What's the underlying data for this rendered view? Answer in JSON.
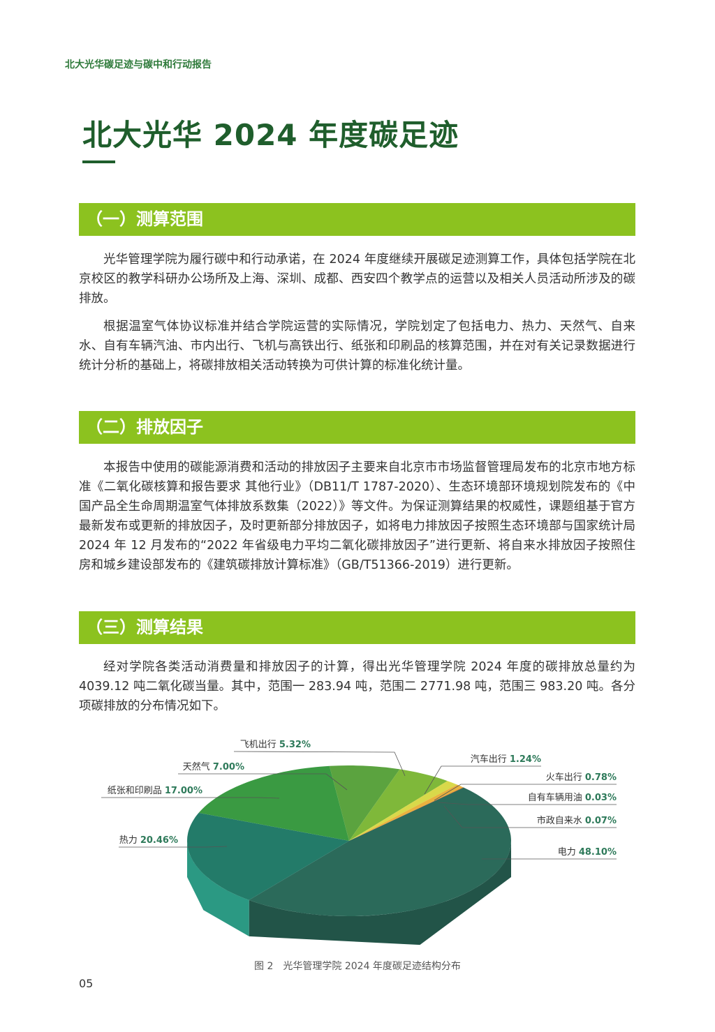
{
  "header": "北大光华碳足迹与碳中和行动报告",
  "title": "北大光华 2024 年度碳足迹",
  "sections": [
    {
      "heading": "（一）测算范围",
      "paragraphs": [
        "光华管理学院为履行碳中和行动承诺，在 2024 年度继续开展碳足迹测算工作，具体包括学院在北京校区的教学科研办公场所及上海、深圳、成都、西安四个教学点的运营以及相关人员活动所涉及的碳排放。",
        "根据温室气体协议标准并结合学院运营的实际情况，学院划定了包括电力、热力、天然气、自来水、自有车辆汽油、市内出行、飞机与高铁出行、纸张和印刷品的核算范围，并在对有关记录数据进行统计分析的基础上，将碳排放相关活动转换为可供计算的标准化统计量。"
      ]
    },
    {
      "heading": "（二）排放因子",
      "paragraphs": [
        "本报告中使用的碳能源消费和活动的排放因子主要来自北京市市场监督管理局发布的北京市地方标准《二氧化碳核算和报告要求 其他行业》（DB11/T 1787-2020）、生态环境部环境规划院发布的《中国产品全生命周期温室气体排放系数集（2022）》等文件。为保证测算结果的权威性，课题组基于官方最新发布或更新的排放因子，及时更新部分排放因子，如将电力排放因子按照生态环境部与国家统计局 2024 年 12 月发布的“2022 年省级电力平均二氧化碳排放因子”进行更新、将自来水排放因子按照住房和城乡建设部发布的《建筑碳排放计算标准》（GB/T51366-2019）进行更新。"
      ]
    },
    {
      "heading": "（三）测算结果",
      "paragraphs": [
        "经对学院各类活动消费量和排放因子的计算，得出光华管理学院 2024 年度的碳排放总量约为 4039.12 吨二氧化碳当量。其中，范围一 283.94 吨，范围二 2771.98 吨，范围三 983.20 吨。各分项碳排放的分布情况如下。"
      ]
    }
  ],
  "chart_data": {
    "type": "pie",
    "style": "3d",
    "unit": "%",
    "slices": [
      {
        "label": "电力",
        "value": 48.1,
        "display": "48.10%",
        "color": "#2b6a5a"
      },
      {
        "label": "热力",
        "value": 20.46,
        "display": "20.46%",
        "color": "#237b69"
      },
      {
        "label": "纸张和印刷品",
        "value": 17.0,
        "display": "17.00%",
        "color": "#3a9a42"
      },
      {
        "label": "天然气",
        "value": 7.0,
        "display": "7.00%",
        "color": "#5ba33f"
      },
      {
        "label": "飞机出行",
        "value": 5.32,
        "display": "5.32%",
        "color": "#7fb83a"
      },
      {
        "label": "汽车出行",
        "value": 1.24,
        "display": "1.24%",
        "color": "#d9d94a"
      },
      {
        "label": "火车出行",
        "value": 0.78,
        "display": "0.78%",
        "color": "#e9b23e"
      },
      {
        "label": "自有车辆用油",
        "value": 0.03,
        "display": "0.03%",
        "color": "#e07a20"
      },
      {
        "label": "市政自来水",
        "value": 0.07,
        "display": "0.07%",
        "color": "#cf5f12"
      }
    ],
    "label_color": "#2e7a5a"
  },
  "caption": "图 2　光华管理学院 2024 年度碳足迹结构分布",
  "page_number": "05"
}
